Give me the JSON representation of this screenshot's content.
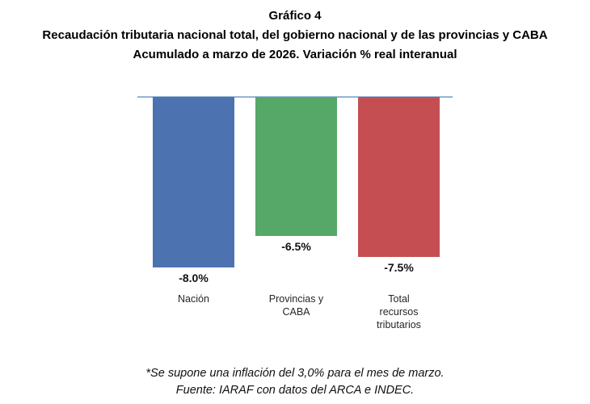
{
  "chart_data": {
    "type": "bar",
    "title": "Gráfico 4",
    "subtitle_line1": "Recaudación tributaria nacional total, del gobierno nacional y de las provincias y CABA",
    "subtitle_line2": "Acumulado a marzo de 2026. Variación % real interanual",
    "categories": [
      "Nación",
      "Provincias y\nCABA",
      "Total\nrecursos\ntributarios"
    ],
    "values": [
      -8.0,
      -6.5,
      -7.5
    ],
    "value_labels": [
      "-8.0%",
      "-6.5%",
      "-7.5%"
    ],
    "bar_colors": [
      "#4C72B0",
      "#55A868",
      "#C44E52"
    ],
    "axis_line_color": "#95B3D7",
    "xlabel": "",
    "ylabel": "",
    "ylim": [
      -8.5,
      0
    ],
    "grid": false,
    "legend": false
  },
  "footer": {
    "note": "*Se supone una inflación del 3,0% para el mes de marzo.",
    "source": "Fuente: IARAF con datos del ARCA e INDEC."
  }
}
